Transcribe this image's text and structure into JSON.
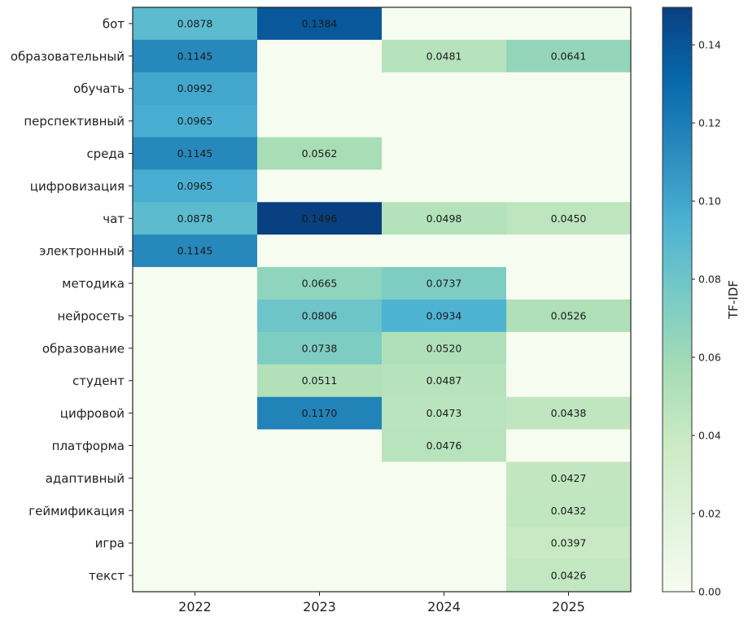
{
  "chart_data": {
    "type": "heatmap",
    "title": "",
    "xlabel": "",
    "ylabel": "",
    "x_categories": [
      "2022",
      "2023",
      "2024",
      "2025"
    ],
    "y_categories": [
      "бот",
      "образовательный",
      "обучать",
      "перспективный",
      "среда",
      "цифровизация",
      "чат",
      "электронный",
      "методика",
      "нейросеть",
      "образование",
      "студент",
      "цифровой",
      "платформа",
      "адаптивный",
      "геймификация",
      "игра",
      "текст"
    ],
    "values": [
      [
        0.0878,
        0.1384,
        null,
        null
      ],
      [
        0.1145,
        null,
        0.0481,
        0.0641
      ],
      [
        0.0992,
        null,
        null,
        null
      ],
      [
        0.0965,
        null,
        null,
        null
      ],
      [
        0.1145,
        0.0562,
        null,
        null
      ],
      [
        0.0965,
        null,
        null,
        null
      ],
      [
        0.0878,
        0.1496,
        0.0498,
        0.045
      ],
      [
        0.1145,
        null,
        null,
        null
      ],
      [
        null,
        0.0665,
        0.0737,
        null
      ],
      [
        null,
        0.0806,
        0.0934,
        0.0526
      ],
      [
        null,
        0.0738,
        0.052,
        null
      ],
      [
        null,
        0.0511,
        0.0487,
        null
      ],
      [
        null,
        0.117,
        0.0473,
        0.0438
      ],
      [
        null,
        null,
        0.0476,
        null
      ],
      [
        null,
        null,
        null,
        0.0427
      ],
      [
        null,
        null,
        null,
        0.0432
      ],
      [
        null,
        null,
        null,
        0.0397
      ],
      [
        null,
        null,
        null,
        0.0426
      ]
    ],
    "value_format": "0.0000",
    "empty_value": 0,
    "colormap": "GnBu",
    "colorbar": {
      "label": "TF-IDF",
      "range": [
        0.0,
        0.1496
      ],
      "ticks": [
        "0.00",
        "0.02",
        "0.04",
        "0.06",
        "0.08",
        "0.10",
        "0.12",
        "0.14"
      ],
      "tick_values": [
        0.0,
        0.02,
        0.04,
        0.06,
        0.08,
        0.1,
        0.12,
        0.14
      ],
      "placement": "right"
    },
    "colormap_stops": [
      "#f7fcf0",
      "#e0f3db",
      "#ccebc5",
      "#a8ddb5",
      "#7bccc4",
      "#4eb3d3",
      "#2b8cbe",
      "#0868ac",
      "#084081"
    ]
  }
}
